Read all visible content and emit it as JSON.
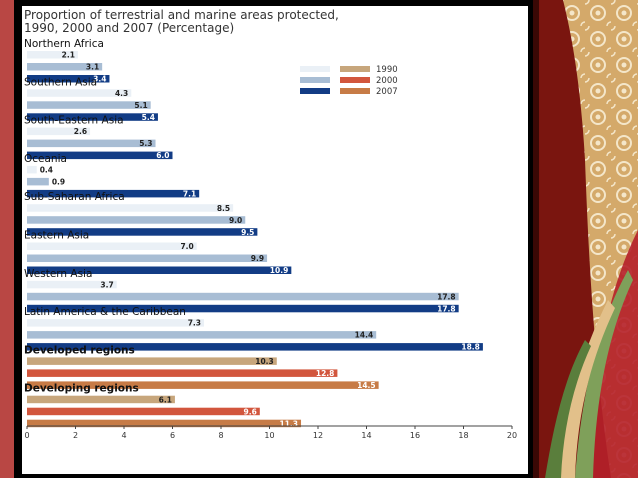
{
  "chart_data": {
    "type": "bar",
    "orientation": "horizontal",
    "title": "Proportion of terrestrial and marine areas protected, 1990, 2000 and 2007 (Percentage)",
    "title_lines": [
      "Proportion of terrestrial and marine areas protected,",
      "1990, 2000 and 2007 (Percentage)"
    ],
    "xlim": [
      0,
      20
    ],
    "xticks": [
      0,
      2,
      4,
      6,
      8,
      10,
      12,
      14,
      16,
      18,
      20
    ],
    "legend": {
      "placement": "top-right",
      "entries": [
        {
          "label": "1990",
          "colors": [
            "#eaf0f6",
            "#c7a67c"
          ]
        },
        {
          "label": "2000",
          "colors": [
            "#a8bdd4",
            "#d2563d"
          ]
        },
        {
          "label": "2007",
          "colors": [
            "#123c85",
            "#c77b46"
          ]
        }
      ]
    },
    "series_names": [
      "1990",
      "2000",
      "2007"
    ],
    "categories": [
      {
        "name": "Northern Africa",
        "values": [
          2.1,
          3.1,
          3.4
        ],
        "labels": [
          "2.1",
          "3.1",
          "3.4"
        ],
        "group": "region",
        "bold": false
      },
      {
        "name": "Southern Asia",
        "values": [
          4.3,
          5.1,
          5.4
        ],
        "labels": [
          "4.3",
          "5.1",
          "5.4"
        ],
        "group": "region",
        "bold": false
      },
      {
        "name": "South-Eastern Asia",
        "values": [
          2.6,
          5.3,
          6.0
        ],
        "labels": [
          "2.6",
          "5.3",
          "6.0"
        ],
        "group": "region",
        "bold": false
      },
      {
        "name": "Oceania",
        "values": [
          0.4,
          0.9,
          7.1
        ],
        "labels": [
          "0.4",
          "0.9",
          "7.1"
        ],
        "group": "region",
        "bold": false
      },
      {
        "name": "Sub-Saharan Africa",
        "values": [
          8.5,
          9.0,
          9.5
        ],
        "labels": [
          "8.5",
          "9.0",
          "9.5"
        ],
        "group": "region",
        "bold": false
      },
      {
        "name": "Eastern Asia",
        "values": [
          7.0,
          9.9,
          10.9
        ],
        "labels": [
          "7.0",
          "9.9",
          "10.9"
        ],
        "group": "region",
        "bold": false
      },
      {
        "name": "Western Asia",
        "values": [
          3.7,
          17.8,
          17.8
        ],
        "labels": [
          "3.7",
          "17.8",
          "17.8"
        ],
        "group": "region",
        "bold": false
      },
      {
        "name": "Latin America & the Caribbean",
        "values": [
          7.3,
          14.4,
          18.8
        ],
        "labels": [
          "7.3",
          "14.4",
          "18.8"
        ],
        "group": "region",
        "bold": false
      },
      {
        "name": "Developed regions",
        "values": [
          10.3,
          12.8,
          14.5
        ],
        "labels": [
          "10.3",
          "12.8",
          "14.5"
        ],
        "group": "aggregate",
        "bold": true
      },
      {
        "name": "Developing regions",
        "values": [
          6.1,
          9.6,
          11.3
        ],
        "labels": [
          "6.1",
          "9.6",
          "11.3"
        ],
        "group": "aggregate",
        "bold": true
      }
    ],
    "colors": {
      "region": [
        "#eaf0f6",
        "#a8bdd4",
        "#123c85"
      ],
      "aggregate": [
        "#c7a67c",
        "#d2563d",
        "#c77b46"
      ]
    },
    "grid": false
  }
}
